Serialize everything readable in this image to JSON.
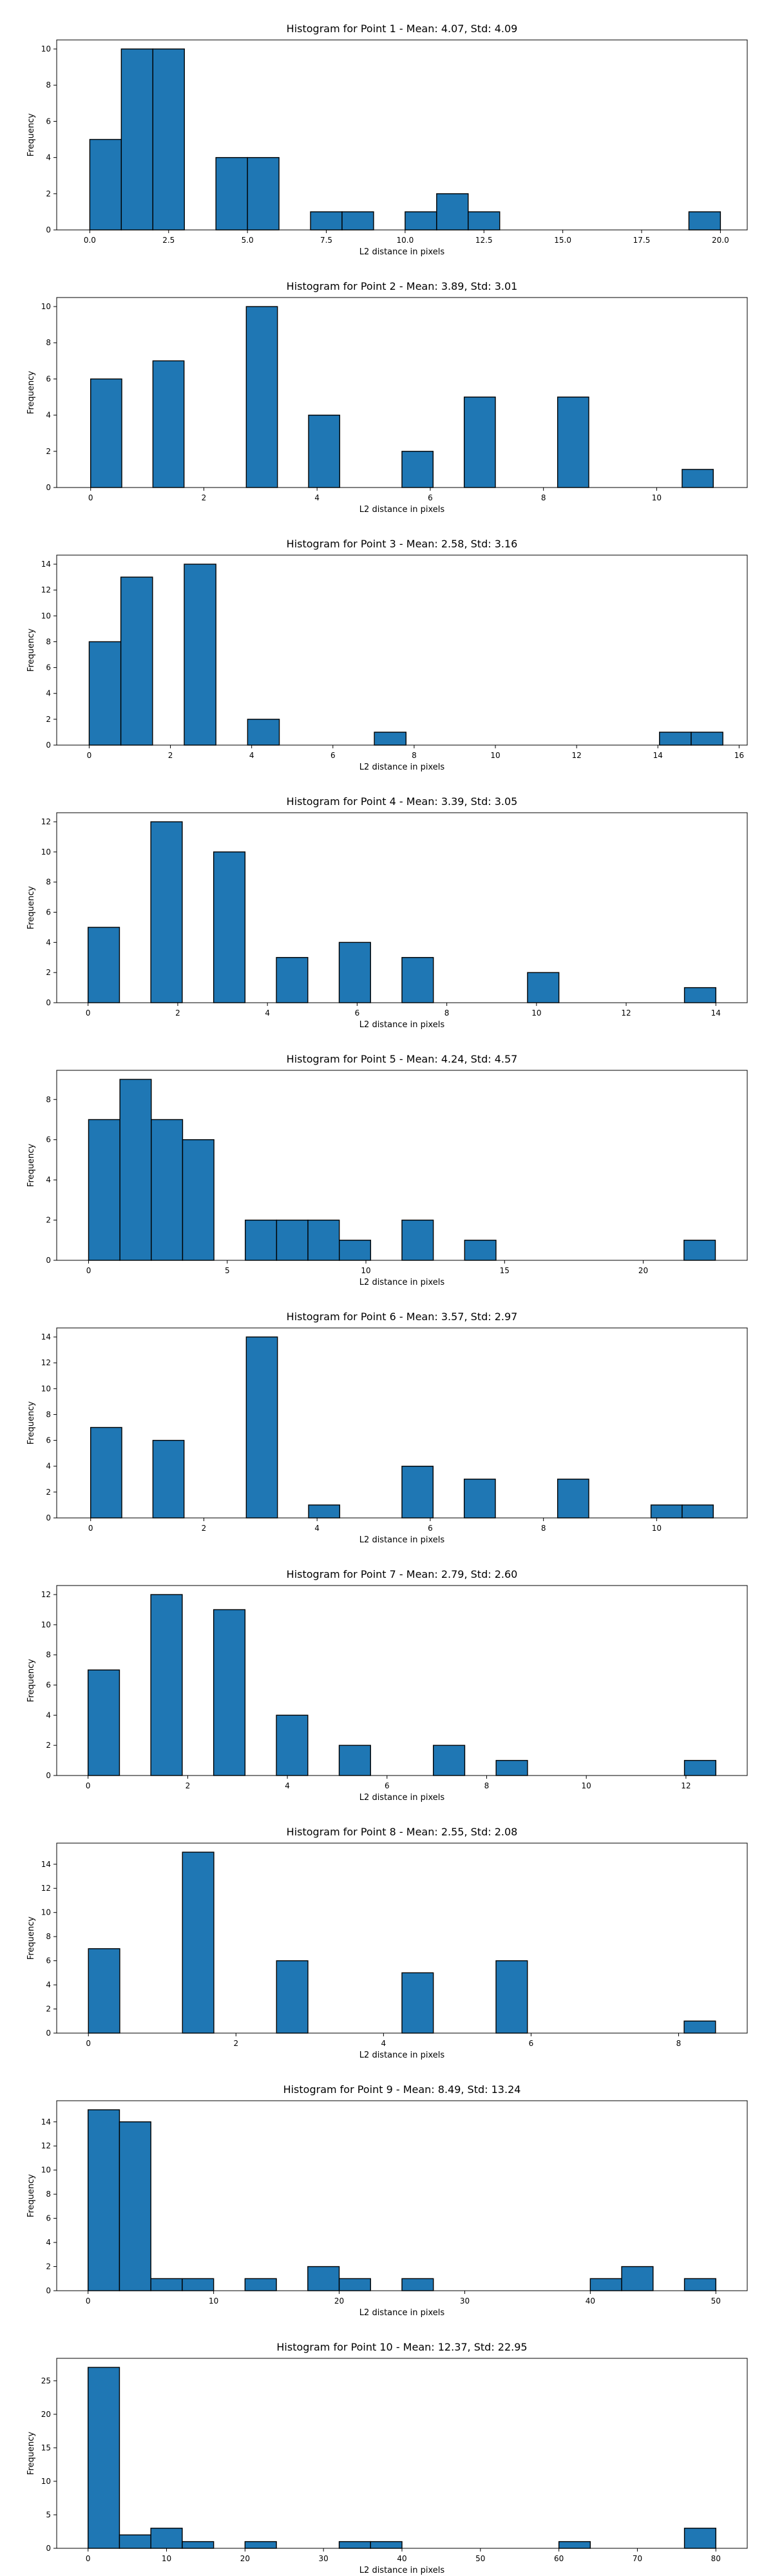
{
  "figure": {
    "bar_color": "#1f77b4",
    "edge_color": "#000000"
  },
  "chart_data": [
    {
      "type": "bar",
      "title": "Histogram for Point 1 - Mean: 4.07, Std: 4.09",
      "xlabel": "L2 distance in pixels",
      "ylabel": "Frequency",
      "xlim": [
        -1.05,
        20.85
      ],
      "ylim": [
        0,
        10.5
      ],
      "xticks": [
        0.0,
        2.5,
        5.0,
        7.5,
        10.0,
        12.5,
        15.0,
        17.5,
        20.0
      ],
      "xtick_labels": [
        "0.0",
        "2.5",
        "5.0",
        "7.5",
        "10.0",
        "12.5",
        "15.0",
        "17.5",
        "20.0"
      ],
      "yticks": [
        0,
        2,
        4,
        6,
        8,
        10
      ],
      "ytick_labels": [
        "0",
        "2",
        "4",
        "6",
        "8",
        "10"
      ],
      "bin_edges": [
        0.0,
        1.0,
        2.0,
        3.0,
        4.0,
        5.0,
        6.0,
        7.0,
        8.0,
        9.0,
        10.0,
        11.0,
        12.0,
        13.0,
        14.0,
        15.0,
        16.0,
        17.0,
        18.0,
        19.0,
        20.0
      ],
      "values": [
        5,
        10,
        10,
        0,
        4,
        4,
        0,
        1,
        1,
        0,
        1,
        2,
        1,
        0,
        0,
        0,
        0,
        0,
        0,
        1
      ]
    },
    {
      "type": "bar",
      "title": "Histogram for Point 2 - Mean: 3.89, Std: 3.01",
      "xlabel": "L2 distance in pixels",
      "ylabel": "Frequency",
      "xlim": [
        -0.6,
        11.6
      ],
      "ylim": [
        0,
        10.5
      ],
      "xticks": [
        0,
        2,
        4,
        6,
        8,
        10
      ],
      "xtick_labels": [
        "0",
        "2",
        "4",
        "6",
        "8",
        "10"
      ],
      "yticks": [
        0,
        2,
        4,
        6,
        8,
        10
      ],
      "ytick_labels": [
        "0",
        "2",
        "4",
        "6",
        "8",
        "10"
      ],
      "bin_edges": [
        0.0,
        0.55,
        1.1,
        1.65,
        2.2,
        2.75,
        3.3,
        3.85,
        4.4,
        4.95,
        5.5,
        6.05,
        6.6,
        7.15,
        7.7,
        8.25,
        8.8,
        9.35,
        9.9,
        10.45,
        11.0
      ],
      "values": [
        6,
        0,
        7,
        0,
        0,
        10,
        0,
        4,
        0,
        0,
        2,
        0,
        5,
        0,
        0,
        5,
        0,
        0,
        0,
        1
      ]
    },
    {
      "type": "bar",
      "title": "Histogram for Point 3 - Mean: 2.58, Std: 3.16",
      "xlabel": "L2 distance in pixels",
      "ylabel": "Frequency",
      "xlim": [
        -0.8,
        16.2
      ],
      "ylim": [
        0,
        14.7
      ],
      "xticks": [
        0,
        2,
        4,
        6,
        8,
        10,
        12,
        14,
        16
      ],
      "xtick_labels": [
        "0",
        "2",
        "4",
        "6",
        "8",
        "10",
        "12",
        "14",
        "16"
      ],
      "yticks": [
        0,
        2,
        4,
        6,
        8,
        10,
        12,
        14
      ],
      "ytick_labels": [
        "0",
        "2",
        "4",
        "6",
        "8",
        "10",
        "12",
        "14"
      ],
      "bin_edges": [
        0.0,
        0.78,
        1.56,
        2.34,
        3.12,
        3.9,
        4.68,
        5.46,
        6.24,
        7.02,
        7.8,
        8.58,
        9.36,
        10.14,
        10.92,
        11.7,
        12.48,
        13.26,
        14.04,
        14.82,
        15.6
      ],
      "values": [
        8,
        13,
        0,
        14,
        0,
        2,
        0,
        0,
        0,
        1,
        0,
        0,
        0,
        0,
        0,
        0,
        0,
        0,
        1,
        1
      ]
    },
    {
      "type": "bar",
      "title": "Histogram for Point 4 - Mean: 3.39, Std: 3.05",
      "xlabel": "L2 distance in pixels",
      "ylabel": "Frequency",
      "xlim": [
        -0.7,
        14.7
      ],
      "ylim": [
        0,
        12.6
      ],
      "xticks": [
        0,
        2,
        4,
        6,
        8,
        10,
        12,
        14
      ],
      "xtick_labels": [
        "0",
        "2",
        "4",
        "6",
        "8",
        "10",
        "12",
        "14"
      ],
      "yticks": [
        0,
        2,
        4,
        6,
        8,
        10,
        12
      ],
      "ytick_labels": [
        "0",
        "2",
        "4",
        "6",
        "8",
        "10",
        "12"
      ],
      "bin_edges": [
        0.0,
        0.7,
        1.4,
        2.1,
        2.8,
        3.5,
        4.2,
        4.9,
        5.6,
        6.3,
        7.0,
        7.7,
        8.4,
        9.1,
        9.8,
        10.5,
        11.2,
        11.9,
        12.6,
        13.3,
        14.0
      ],
      "values": [
        5,
        0,
        12,
        0,
        10,
        0,
        3,
        0,
        4,
        0,
        3,
        0,
        0,
        0,
        2,
        0,
        0,
        0,
        0,
        1
      ]
    },
    {
      "type": "bar",
      "title": "Histogram for Point 5 - Mean: 4.24, Std: 4.57",
      "xlabel": "L2 distance in pixels",
      "ylabel": "Frequency",
      "xlim": [
        -1.15,
        23.75
      ],
      "ylim": [
        0,
        9.45
      ],
      "xticks": [
        0,
        5,
        10,
        15,
        20
      ],
      "xtick_labels": [
        "0",
        "5",
        "10",
        "15",
        "20"
      ],
      "yticks": [
        0,
        2,
        4,
        6,
        8
      ],
      "ytick_labels": [
        "0",
        "2",
        "4",
        "6",
        "8"
      ],
      "bin_edges": [
        0.0,
        1.13,
        2.26,
        3.39,
        4.52,
        5.65,
        6.78,
        7.91,
        9.04,
        10.17,
        11.3,
        12.43,
        13.56,
        14.69,
        15.82,
        16.95,
        18.08,
        19.21,
        20.34,
        21.47,
        22.6
      ],
      "values": [
        7,
        9,
        7,
        6,
        0,
        2,
        2,
        2,
        1,
        0,
        2,
        0,
        1,
        0,
        0,
        0,
        0,
        0,
        0,
        1
      ]
    },
    {
      "type": "bar",
      "title": "Histogram for Point 6 - Mean: 3.57, Std: 2.97",
      "xlabel": "L2 distance in pixels",
      "ylabel": "Frequency",
      "xlim": [
        -0.6,
        11.6
      ],
      "ylim": [
        0,
        14.7
      ],
      "xticks": [
        0,
        2,
        4,
        6,
        8,
        10
      ],
      "xtick_labels": [
        "0",
        "2",
        "4",
        "6",
        "8",
        "10"
      ],
      "yticks": [
        0,
        2,
        4,
        6,
        8,
        10,
        12,
        14
      ],
      "ytick_labels": [
        "0",
        "2",
        "4",
        "6",
        "8",
        "10",
        "12",
        "14"
      ],
      "bin_edges": [
        0.0,
        0.55,
        1.1,
        1.65,
        2.2,
        2.75,
        3.3,
        3.85,
        4.4,
        4.95,
        5.5,
        6.05,
        6.6,
        7.15,
        7.7,
        8.25,
        8.8,
        9.35,
        9.9,
        10.45,
        11.0
      ],
      "values": [
        7,
        0,
        6,
        0,
        0,
        14,
        0,
        1,
        0,
        0,
        4,
        0,
        3,
        0,
        0,
        3,
        0,
        0,
        1,
        1
      ]
    },
    {
      "type": "bar",
      "title": "Histogram for Point 7 - Mean: 2.79, Std: 2.60",
      "xlabel": "L2 distance in pixels",
      "ylabel": "Frequency",
      "xlim": [
        -0.63,
        13.23
      ],
      "ylim": [
        0,
        12.6
      ],
      "xticks": [
        0,
        2,
        4,
        6,
        8,
        10,
        12
      ],
      "xtick_labels": [
        "0",
        "2",
        "4",
        "6",
        "8",
        "10",
        "12"
      ],
      "yticks": [
        0,
        2,
        4,
        6,
        8,
        10,
        12
      ],
      "ytick_labels": [
        "0",
        "2",
        "4",
        "6",
        "8",
        "10",
        "12"
      ],
      "bin_edges": [
        0.0,
        0.63,
        1.26,
        1.89,
        2.52,
        3.15,
        3.78,
        4.41,
        5.04,
        5.67,
        6.3,
        6.93,
        7.56,
        8.19,
        8.82,
        9.45,
        10.08,
        10.71,
        11.34,
        11.97,
        12.6
      ],
      "values": [
        7,
        0,
        12,
        0,
        11,
        0,
        4,
        0,
        2,
        0,
        0,
        2,
        0,
        1,
        0,
        0,
        0,
        0,
        0,
        1
      ]
    },
    {
      "type": "bar",
      "title": "Histogram for Point 8 - Mean: 2.55, Std: 2.08",
      "xlabel": "L2 distance in pixels",
      "ylabel": "Frequency",
      "xlim": [
        -0.43,
        8.93
      ],
      "ylim": [
        0,
        15.75
      ],
      "xticks": [
        0,
        2,
        4,
        6,
        8
      ],
      "xtick_labels": [
        "0",
        "2",
        "4",
        "6",
        "8"
      ],
      "yticks": [
        0,
        2,
        4,
        6,
        8,
        10,
        12,
        14
      ],
      "ytick_labels": [
        "0",
        "2",
        "4",
        "6",
        "8",
        "10",
        "12",
        "14"
      ],
      "bin_edges": [
        0.0,
        0.425,
        0.85,
        1.275,
        1.7,
        2.125,
        2.55,
        2.975,
        3.4,
        3.825,
        4.25,
        4.675,
        5.1,
        5.525,
        5.95,
        6.375,
        6.8,
        7.225,
        7.65,
        8.075,
        8.5
      ],
      "values": [
        7,
        0,
        0,
        15,
        0,
        0,
        6,
        0,
        0,
        0,
        5,
        0,
        0,
        6,
        0,
        0,
        0,
        0,
        0,
        1
      ]
    },
    {
      "type": "bar",
      "title": "Histogram for Point 9 - Mean: 8.49, Std: 13.24",
      "xlabel": "L2 distance in pixels",
      "ylabel": "Frequency",
      "xlim": [
        -2.5,
        52.5
      ],
      "ylim": [
        0,
        15.75
      ],
      "xticks": [
        0,
        10,
        20,
        30,
        40,
        50
      ],
      "xtick_labels": [
        "0",
        "10",
        "20",
        "30",
        "40",
        "50"
      ],
      "yticks": [
        0,
        2,
        4,
        6,
        8,
        10,
        12,
        14
      ],
      "ytick_labels": [
        "0",
        "2",
        "4",
        "6",
        "8",
        "10",
        "12",
        "14"
      ],
      "bin_edges": [
        0.0,
        2.5,
        5.0,
        7.5,
        10.0,
        12.5,
        15.0,
        17.5,
        20.0,
        22.5,
        25.0,
        27.5,
        30.0,
        32.5,
        35.0,
        37.5,
        40.0,
        42.5,
        45.0,
        47.5,
        50.0
      ],
      "values": [
        15,
        14,
        1,
        1,
        0,
        1,
        0,
        2,
        1,
        0,
        1,
        0,
        0,
        0,
        0,
        0,
        1,
        2,
        0,
        1
      ]
    },
    {
      "type": "bar",
      "title": "Histogram for Point 10 - Mean: 12.37, Std: 22.95",
      "xlabel": "L2 distance in pixels",
      "ylabel": "Frequency",
      "xlim": [
        -4.0,
        84.0
      ],
      "ylim": [
        0,
        28.35
      ],
      "xticks": [
        0,
        10,
        20,
        30,
        40,
        50,
        60,
        70,
        80
      ],
      "xtick_labels": [
        "0",
        "10",
        "20",
        "30",
        "40",
        "50",
        "60",
        "70",
        "80"
      ],
      "yticks": [
        0,
        5,
        10,
        15,
        20,
        25
      ],
      "ytick_labels": [
        "0",
        "5",
        "10",
        "15",
        "20",
        "25"
      ],
      "bin_edges": [
        0.0,
        4.0,
        8.0,
        12.0,
        16.0,
        20.0,
        24.0,
        28.0,
        32.0,
        36.0,
        40.0,
        44.0,
        48.0,
        52.0,
        56.0,
        60.0,
        64.0,
        68.0,
        72.0,
        76.0,
        80.0
      ],
      "values": [
        27,
        2,
        3,
        1,
        0,
        1,
        0,
        0,
        1,
        1,
        0,
        0,
        0,
        0,
        0,
        1,
        0,
        0,
        0,
        3
      ]
    }
  ]
}
